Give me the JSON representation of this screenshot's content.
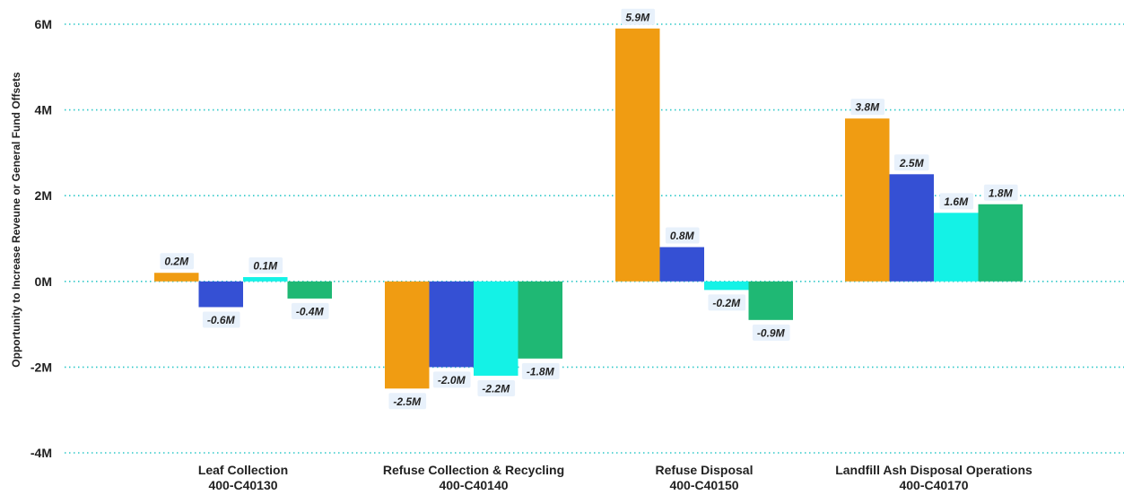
{
  "chart_data": {
    "type": "bar",
    "ylabel": "Opportunity to Increase Reveune or General Fund Offsets",
    "xlabel": "",
    "ylim": [
      -4,
      6
    ],
    "yticks": [
      -4,
      -2,
      0,
      2,
      4,
      6
    ],
    "ytick_labels": [
      "-4M",
      "-2M",
      "0M",
      "2M",
      "4M",
      "6M"
    ],
    "grid": true,
    "categories": [
      [
        "Leaf Collection",
        "400-C40130"
      ],
      [
        "Refuse Collection & Recycling",
        "400-C40140"
      ],
      [
        "Refuse Disposal",
        "400-C40150"
      ],
      [
        "Landfill Ash Disposal Operations",
        "400-C40170"
      ]
    ],
    "colors": [
      "#F09C12",
      "#3550D4",
      "#14F2E6",
      "#1FB874"
    ],
    "series": [
      {
        "values": [
          0.2,
          -2.5,
          5.9,
          3.8
        ],
        "labels": [
          "0.2M",
          "-2.5M",
          "5.9M",
          "3.8M"
        ]
      },
      {
        "values": [
          -0.6,
          -2.0,
          0.8,
          2.5
        ],
        "labels": [
          "-0.6M",
          "-2.0M",
          "0.8M",
          "2.5M"
        ]
      },
      {
        "values": [
          0.1,
          -2.2,
          -0.2,
          1.6
        ],
        "labels": [
          "0.1M",
          "-2.2M",
          "-0.2M",
          "1.6M"
        ]
      },
      {
        "values": [
          -0.4,
          -1.8,
          -0.9,
          1.8
        ],
        "labels": [
          "-0.4M",
          "-1.8M",
          "-0.9M",
          "1.8M"
        ]
      }
    ]
  }
}
